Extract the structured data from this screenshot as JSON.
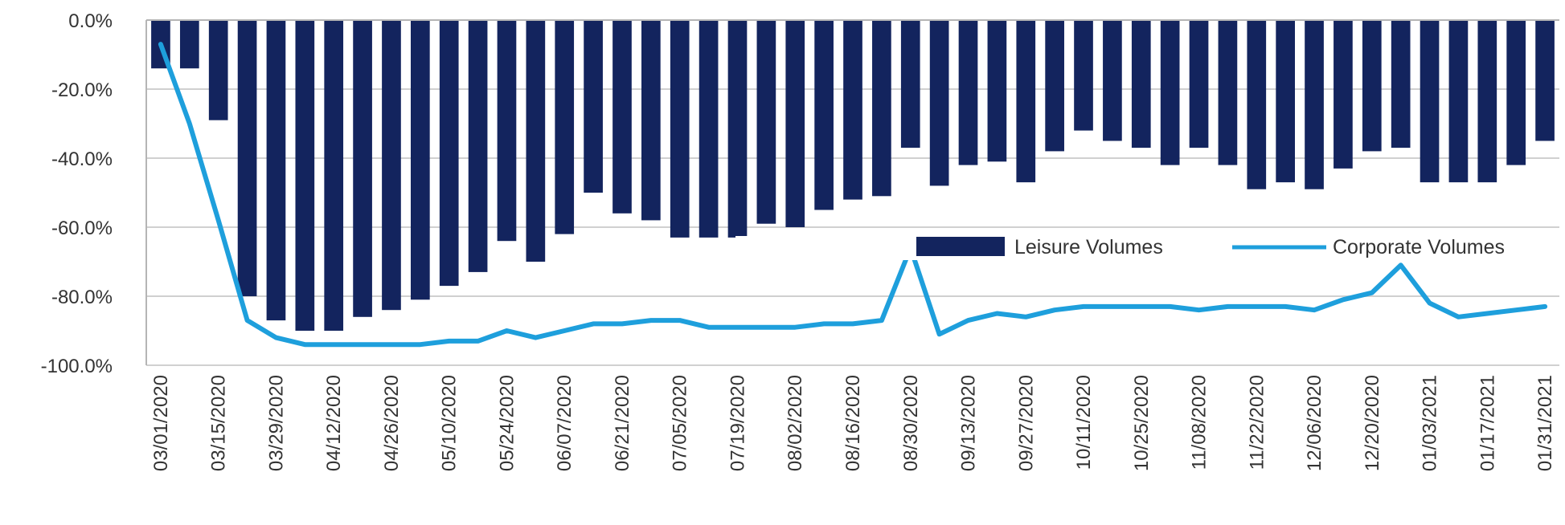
{
  "chart_data": {
    "type": "bar",
    "title": "",
    "xlabel": "",
    "ylabel": "",
    "ylim": [
      -100,
      0
    ],
    "yticks": [
      "0.0%",
      "-20.0%",
      "-40.0%",
      "-60.0%",
      "-80.0%",
      "-100.0%"
    ],
    "ytick_values": [
      0,
      -20,
      -40,
      -60,
      -80,
      -100
    ],
    "grid": true,
    "legend_position": "right",
    "x": [
      "03/01/2020",
      "03/08/2020",
      "03/15/2020",
      "03/22/2020",
      "03/29/2020",
      "04/05/2020",
      "04/12/2020",
      "04/19/2020",
      "04/26/2020",
      "05/03/2020",
      "05/10/2020",
      "05/17/2020",
      "05/24/2020",
      "05/31/2020",
      "06/07/2020",
      "06/14/2020",
      "06/21/2020",
      "06/28/2020",
      "07/05/2020",
      "07/12/2020",
      "07/19/2020",
      "07/26/2020",
      "08/02/2020",
      "08/09/2020",
      "08/16/2020",
      "08/23/2020",
      "08/30/2020",
      "09/06/2020",
      "09/13/2020",
      "09/20/2020",
      "09/27/2020",
      "10/04/2020",
      "10/11/2020",
      "10/18/2020",
      "10/25/2020",
      "11/01/2020",
      "11/08/2020",
      "11/15/2020",
      "11/22/2020",
      "11/29/2020",
      "12/06/2020",
      "12/13/2020",
      "12/20/2020",
      "12/27/2020",
      "01/03/2021",
      "01/10/2021",
      "01/17/2021",
      "01/24/2021",
      "01/31/2021"
    ],
    "xtick_labels": [
      "03/01/2020",
      "03/15/2020",
      "03/29/2020",
      "04/12/2020",
      "04/26/2020",
      "05/10/2020",
      "05/24/2020",
      "06/07/2020",
      "06/21/2020",
      "07/05/2020",
      "07/19/2020",
      "08/02/2020",
      "08/16/2020",
      "08/30/2020",
      "09/13/2020",
      "09/27/2020",
      "10/11/2020",
      "10/25/2020",
      "11/08/2020",
      "11/22/2020",
      "12/06/2020",
      "12/20/2020",
      "01/03/2021",
      "01/17/2021",
      "01/31/2021"
    ],
    "series": [
      {
        "name": "Leisure Volumes",
        "type": "bar",
        "color": "#13245e",
        "values": [
          -14,
          -14,
          -29,
          -80,
          -87,
          -90,
          -90,
          -86,
          -84,
          -81,
          -77,
          -73,
          -64,
          -70,
          -62,
          -50,
          -56,
          -58,
          -63,
          -63,
          -63,
          -59,
          -60,
          -55,
          -52,
          -51,
          -37,
          -48,
          -42,
          -41,
          -47,
          -38,
          -32,
          -35,
          -37,
          -42,
          -37,
          -42,
          -49,
          -47,
          -49,
          -43,
          -38,
          -37,
          -47,
          -47,
          -47,
          -42,
          -35
        ]
      },
      {
        "name": "Corporate Volumes",
        "type": "line",
        "color": "#1e9fdc",
        "values": [
          -7,
          -30,
          -58,
          -87,
          -92,
          -94,
          -94,
          -94,
          -94,
          -94,
          -93,
          -93,
          -90,
          -92,
          -90,
          -88,
          -88,
          -87,
          -87,
          -89,
          -89,
          -89,
          -89,
          -88,
          -88,
          -87,
          -66,
          -91,
          -87,
          -85,
          -86,
          -84,
          -83,
          -83,
          -83,
          -83,
          -84,
          -83,
          -83,
          -83,
          -84,
          -81,
          -79,
          -71,
          -82,
          -86,
          -85,
          -84,
          -83
        ]
      }
    ]
  }
}
